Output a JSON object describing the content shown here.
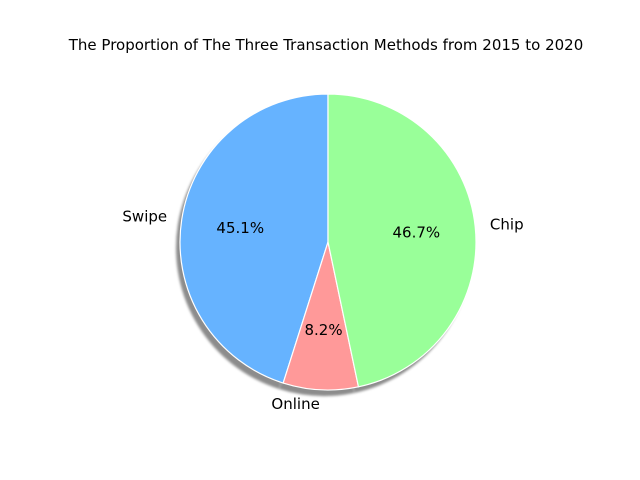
{
  "chart_data": {
    "type": "pie",
    "title": "The Proportion of The Three Transaction Methods from 2015 to 2020",
    "shadow": true,
    "start_angle": "90 degrees (top), counter-clockwise",
    "slices": [
      {
        "label": "Swipe",
        "value": 45.1,
        "pct_label": "45.1%",
        "color": "#66b3ff"
      },
      {
        "label": "Online",
        "value": 8.2,
        "pct_label": "8.2%",
        "color": "#ff9999"
      },
      {
        "label": "Chip",
        "value": 46.7,
        "pct_label": "46.7%",
        "color": "#99ff99"
      }
    ],
    "edge_color": "#ffffff"
  }
}
